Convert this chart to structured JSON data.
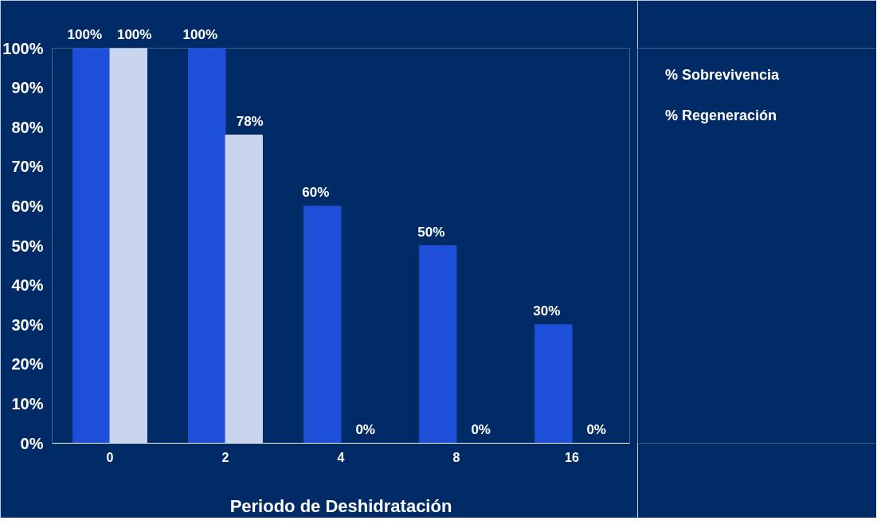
{
  "chart_data": {
    "type": "bar",
    "xlabel": "Periodo de Deshidratación",
    "categories": [
      "0",
      "2",
      "4",
      "8",
      "16"
    ],
    "series": [
      {
        "name": "% Sobrevivencia",
        "color": "#1d4fd8",
        "values": [
          100,
          100,
          60,
          50,
          30
        ],
        "value_labels": [
          "100%",
          "100%",
          "60%",
          "50%",
          "30%"
        ]
      },
      {
        "name": "% Regeneración",
        "color": "#c9d5ee",
        "values": [
          100,
          78,
          0,
          0,
          0
        ],
        "value_labels": [
          "100%",
          "78%",
          "0%",
          "0%",
          "0%"
        ]
      }
    ],
    "ylim": [
      0,
      100
    ],
    "yticks": [
      {
        "value": 0,
        "label": "0%"
      },
      {
        "value": 10,
        "label": "10%"
      },
      {
        "value": 20,
        "label": "20%"
      },
      {
        "value": 30,
        "label": "30%"
      },
      {
        "value": 40,
        "label": "40%"
      },
      {
        "value": 50,
        "label": "50%"
      },
      {
        "value": 60,
        "label": "60%"
      },
      {
        "value": 70,
        "label": "70%"
      },
      {
        "value": 80,
        "label": "80%"
      },
      {
        "value": 90,
        "label": "90%"
      },
      {
        "value": 100,
        "label": "100%"
      }
    ],
    "grid": false,
    "legend": "right"
  }
}
